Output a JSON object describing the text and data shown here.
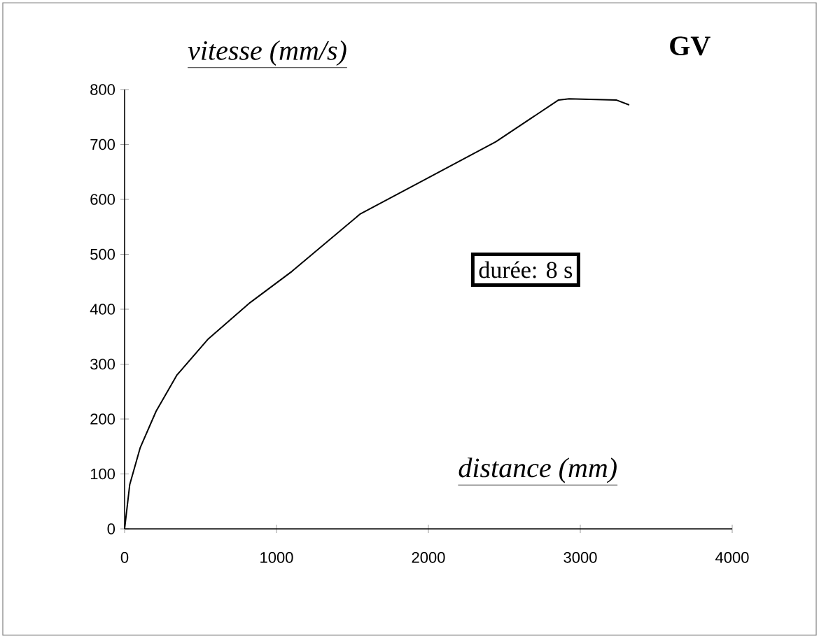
{
  "chart_data": {
    "type": "line",
    "title": "GV",
    "xlabel": "distance (mm)",
    "ylabel": "vitesse (mm/s)",
    "annotations": [
      "durée: 8 s"
    ],
    "xlim": [
      0,
      4000
    ],
    "ylim": [
      0,
      800
    ],
    "xticks": [
      0,
      1000,
      2000,
      3000,
      4000
    ],
    "yticks": [
      0,
      100,
      200,
      300,
      400,
      500,
      600,
      700,
      800
    ],
    "grid": false,
    "marker": "none",
    "line_style": "solid",
    "series": [
      {
        "color": "#000000",
        "x": [
          0,
          34,
          103,
          207,
          344,
          551,
          826,
          1102,
          1549,
          1997,
          2444,
          2857,
          2926,
          3236,
          3322
        ],
        "values": [
          0,
          81,
          148,
          214,
          280,
          346,
          412,
          469,
          573,
          639,
          705,
          781,
          783,
          781,
          772
        ]
      }
    ]
  }
}
